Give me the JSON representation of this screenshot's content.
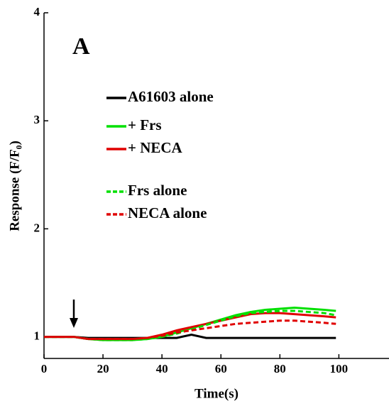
{
  "chart_data": {
    "type": "line",
    "panel_label": "A",
    "xlabel": "Time(s)",
    "ylabel": "Response (F/F₀)",
    "x": [
      0,
      5,
      10,
      15,
      20,
      25,
      30,
      35,
      40,
      45,
      50,
      55,
      60,
      65,
      70,
      75,
      80,
      85,
      90,
      95,
      99
    ],
    "series": [
      {
        "name": "A61603 alone",
        "color": "#000000",
        "dash": false,
        "values": [
          1.0,
          1.0,
          1.0,
          0.99,
          0.99,
          0.99,
          0.99,
          0.99,
          0.99,
          0.99,
          1.02,
          0.99,
          0.99,
          0.99,
          0.99,
          0.99,
          0.99,
          0.99,
          0.99,
          0.99,
          0.99
        ]
      },
      {
        "name": "+ Frs",
        "color": "#00e000",
        "dash": false,
        "values": [
          1.0,
          1.0,
          1.0,
          0.98,
          0.97,
          0.97,
          0.97,
          0.98,
          1.0,
          1.04,
          1.08,
          1.12,
          1.16,
          1.2,
          1.23,
          1.25,
          1.26,
          1.27,
          1.26,
          1.25,
          1.24
        ]
      },
      {
        "name": "+ NECA",
        "color": "#e00000",
        "dash": false,
        "values": [
          1.0,
          1.0,
          1.0,
          0.98,
          0.98,
          0.98,
          0.98,
          0.99,
          1.02,
          1.06,
          1.09,
          1.12,
          1.15,
          1.18,
          1.21,
          1.22,
          1.22,
          1.21,
          1.2,
          1.19,
          1.18
        ]
      },
      {
        "name": "Frs alone",
        "color": "#00e000",
        "dash": true,
        "values": [
          1.0,
          1.0,
          1.0,
          0.98,
          0.97,
          0.97,
          0.97,
          0.98,
          1.0,
          1.03,
          1.07,
          1.11,
          1.15,
          1.19,
          1.22,
          1.23,
          1.24,
          1.24,
          1.23,
          1.22,
          1.2
        ]
      },
      {
        "name": "NECA alone",
        "color": "#e00000",
        "dash": true,
        "values": [
          1.0,
          1.0,
          1.0,
          0.98,
          0.98,
          0.98,
          0.98,
          0.99,
          1.01,
          1.04,
          1.06,
          1.08,
          1.1,
          1.12,
          1.13,
          1.14,
          1.15,
          1.15,
          1.14,
          1.13,
          1.12
        ]
      }
    ],
    "xlim": [
      0,
      117
    ],
    "ylim": [
      0.8,
      4
    ],
    "xticks": [
      0,
      20,
      40,
      60,
      80,
      100
    ],
    "yticks": [
      1,
      2,
      3,
      4
    ]
  }
}
